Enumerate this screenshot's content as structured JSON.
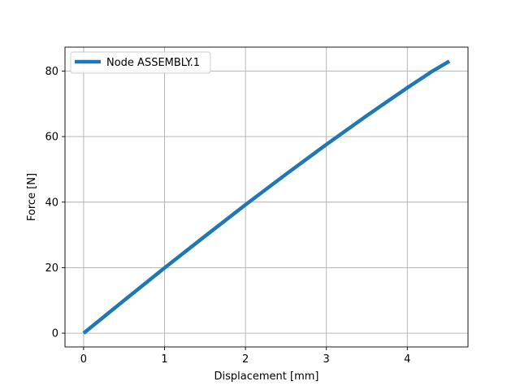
{
  "chart_data": {
    "type": "line",
    "title": "",
    "xlabel": "Displacement [mm]",
    "ylabel": "Force [N]",
    "xlim": [
      -0.23,
      4.75
    ],
    "ylim": [
      -4.2,
      87.3
    ],
    "xticks": [
      0,
      1,
      2,
      3,
      4
    ],
    "yticks": [
      0,
      20,
      40,
      60,
      80
    ],
    "grid": true,
    "legend": "upper-left",
    "series": [
      {
        "name": "Node ASSEMBLY.1",
        "color": "#1f77b4",
        "x": [
          0,
          0.5,
          1.0,
          1.5,
          2.0,
          2.5,
          3.0,
          3.5,
          4.0,
          4.3,
          4.52
        ],
        "y": [
          0,
          10.0,
          19.9,
          29.6,
          39.2,
          48.5,
          57.6,
          66.4,
          74.9,
          79.8,
          83.0
        ]
      }
    ]
  }
}
